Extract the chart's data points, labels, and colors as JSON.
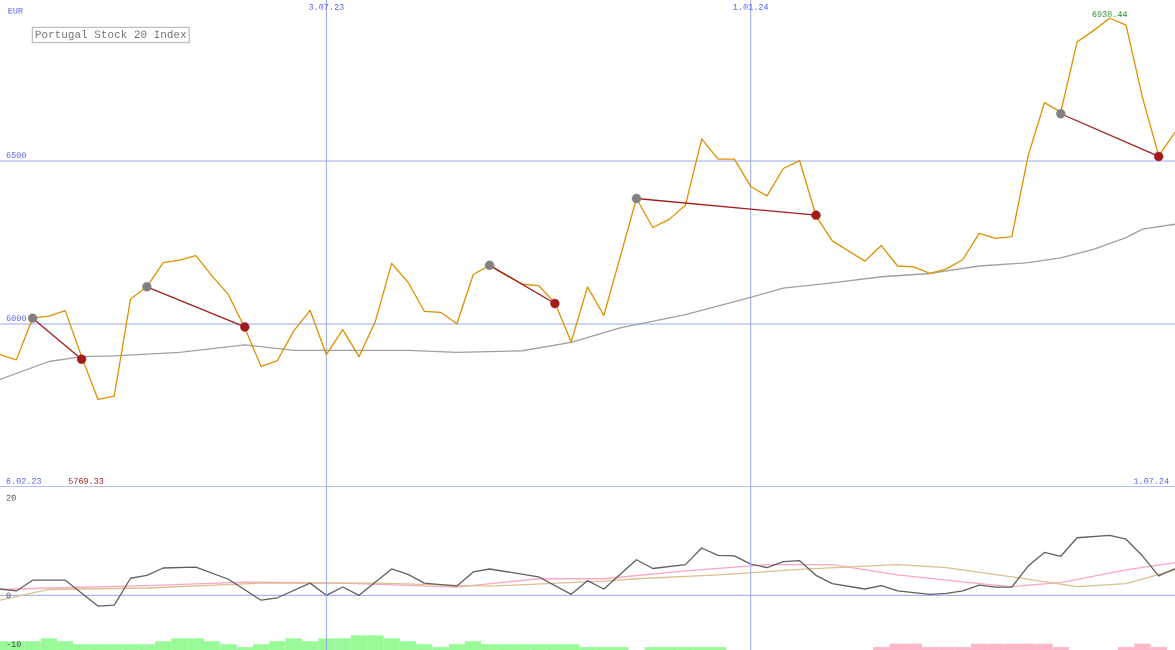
{
  "chart_data": [
    {
      "type": "line",
      "title": "Portugal Stock 20 Index",
      "ylabel": "EUR",
      "x": [
        "2023-02-13",
        "2023-02-20",
        "2023-02-27",
        "2023-03-06",
        "2023-03-13",
        "2023-03-20",
        "2023-03-27",
        "2023-04-03",
        "2023-04-10",
        "2023-04-17",
        "2023-04-24",
        "2023-05-01",
        "2023-05-08",
        "2023-05-15",
        "2023-05-22",
        "2023-05-29",
        "2023-06-05",
        "2023-06-12",
        "2023-06-19",
        "2023-06-26",
        "2023-07-03",
        "2023-07-10",
        "2023-07-17",
        "2023-07-24",
        "2023-07-31",
        "2023-08-07",
        "2023-08-14",
        "2023-08-21",
        "2023-08-28",
        "2023-09-04",
        "2023-09-11",
        "2023-09-18",
        "2023-09-25",
        "2023-10-02",
        "2023-10-09",
        "2023-10-16",
        "2023-10-23",
        "2023-10-30",
        "2023-11-06",
        "2023-11-13",
        "2023-11-20",
        "2023-11-27",
        "2023-12-04",
        "2023-12-11",
        "2023-12-18",
        "2023-12-25",
        "2024-01-01",
        "2024-01-08",
        "2024-01-15",
        "2024-01-22",
        "2024-01-29",
        "2024-02-05",
        "2024-02-12",
        "2024-02-19",
        "2024-02-26",
        "2024-03-04",
        "2024-03-11",
        "2024-03-18",
        "2024-03-25",
        "2024-04-01",
        "2024-04-08",
        "2024-04-15",
        "2024-04-22",
        "2024-04-29",
        "2024-05-06",
        "2024-05-13",
        "2024-05-20",
        "2024-05-27",
        "2024-06-03",
        "2024-06-10",
        "2024-06-17",
        "2024-06-24",
        "2024-07-01"
      ],
      "series": [
        {
          "color": "#a0a0a0",
          "x": [
            "2023-02-13",
            "2023-03-06",
            "2023-03-20",
            "2023-04-03",
            "2023-05-01",
            "2023-05-29",
            "2023-06-19",
            "2023-07-03",
            "2023-08-07",
            "2023-08-28",
            "2023-09-25",
            "2023-10-16",
            "2023-11-06",
            "2023-12-04",
            "2024-01-01",
            "2024-01-15",
            "2024-02-05",
            "2024-02-26",
            "2024-03-18",
            "2024-04-08",
            "2024-04-29",
            "2024-05-13",
            "2024-05-27",
            "2024-06-10",
            "2024-06-17",
            "2024-07-01"
          ],
          "values": [
            5830,
            5885,
            5900,
            5902,
            5913,
            5936,
            5919,
            5919,
            5919,
            5913,
            5918,
            5944,
            5988,
            6029,
            6082,
            6110,
            6126,
            6145,
            6155,
            6178,
            6188,
            6203,
            6229,
            6265,
            6291,
            6306
          ]
        },
        {
          "color": "#dd9000",
          "values": [
            5906,
            5890,
            6018,
            6024,
            6041,
            5900,
            5769,
            5779,
            6077,
            6114,
            6188,
            6196,
            6210,
            6147,
            6090,
            5988,
            5870,
            5888,
            5979,
            6042,
            5906,
            5983,
            5900,
            6008,
            6186,
            6128,
            6039,
            6036,
            6001,
            6152,
            6180,
            6150,
            6122,
            6118,
            6065,
            5945,
            6114,
            6026,
            6205,
            6385,
            6296,
            6321,
            6364,
            6568,
            6506,
            6506,
            6422,
            6393,
            6477,
            6501,
            6332,
            6255,
            6224,
            6193,
            6241,
            6178,
            6175,
            6155,
            6169,
            6198,
            6278,
            6263,
            6268,
            6516,
            6679,
            6650,
            6865,
            6900,
            6938,
            6917,
            6696,
            6516,
            6588
          ]
        },
        {
          "color": "#a01c1c",
          "marker": "circle",
          "colors": [
            "#808080",
            "#a01c1c"
          ],
          "x": [
            "2023-02-27",
            "2023-03-20"
          ],
          "values": [
            6018,
            5892
          ]
        },
        {
          "color": "#a01c1c",
          "marker": "circle",
          "colors": [
            "#808080",
            "#a01c1c"
          ],
          "x": [
            "2023-04-17",
            "2023-05-29"
          ],
          "values": [
            6114,
            5991
          ]
        },
        {
          "color": "#a01c1c",
          "marker": "circle",
          "colors": [
            "#808080",
            "#a01c1c"
          ],
          "x": [
            "2023-09-11",
            "2023-10-09"
          ],
          "values": [
            6180,
            6063
          ]
        },
        {
          "color": "#a01c1c",
          "marker": "circle",
          "colors": [
            "#808080",
            "#a01c1c"
          ],
          "x": [
            "2023-11-13",
            "2024-01-29"
          ],
          "values": [
            6385,
            6334
          ]
        },
        {
          "color": "#a01c1c",
          "marker": "circle",
          "colors": [
            "#808080",
            "#a01c1c"
          ],
          "x": [
            "2024-05-13",
            "2024-06-24"
          ],
          "values": [
            6645,
            6514
          ]
        }
      ],
      "xlim": [
        "2023-02-13",
        "2024-07-01"
      ],
      "ylim": [
        5500,
        6994
      ],
      "xticks": [
        {
          "value": "2023-07-03",
          "label": "3.07.23"
        },
        {
          "value": "2024-01-01",
          "label": "1.01.24"
        }
      ],
      "yticks": [
        6000,
        6500
      ],
      "grid": true,
      "annotations": [
        "6.02.23",
        "1.07.24",
        "5769.33",
        {
          "text": "6938.44",
          "x": "2024-06-03",
          "y": 6938
        }
      ]
    },
    {
      "type": "line",
      "series": [
        {
          "type": "bar",
          "color": "#98fb98",
          "x": [
            "2023-02-13",
            "2023-02-20",
            "2023-02-27",
            "2023-03-06",
            "2023-03-13",
            "2023-03-20",
            "2023-03-27",
            "2023-04-03",
            "2023-04-10",
            "2023-04-17",
            "2023-04-24",
            "2023-05-01",
            "2023-05-08",
            "2023-05-15",
            "2023-05-22",
            "2023-05-29",
            "2023-06-05",
            "2023-06-12",
            "2023-06-19",
            "2023-06-26",
            "2023-07-03",
            "2023-07-10",
            "2023-07-17",
            "2023-07-24",
            "2023-07-31",
            "2023-08-07",
            "2023-08-14",
            "2023-08-21",
            "2023-08-28",
            "2023-09-04",
            "2023-09-11",
            "2023-09-18",
            "2023-09-25",
            "2023-10-02",
            "2023-10-09",
            "2023-10-16",
            "2023-10-23",
            "2023-10-30",
            "2023-11-06",
            "2023-11-13",
            "2023-11-20",
            "2023-11-27",
            "2023-12-04",
            "2023-12-11",
            "2023-12-18"
          ],
          "values": [
            1.8,
            1.8,
            1.8,
            2.4,
            1.8,
            1.2,
            1.2,
            1.2,
            1.2,
            1.2,
            1.8,
            2.4,
            2.4,
            1.8,
            1.2,
            0.6,
            1.2,
            1.8,
            2.4,
            1.8,
            2.4,
            2.4,
            3.0,
            3.0,
            2.4,
            1.8,
            1.2,
            0.6,
            1.2,
            1.8,
            1.2,
            1.2,
            1.2,
            1.2,
            1.2,
            1.2,
            0.6,
            0.6,
            0.6,
            null,
            0.6,
            0.6,
            0.6,
            0.6,
            0.6
          ],
          "base": [
            -11.2,
            -11.2,
            -11.2,
            -11.2,
            -11.2,
            -11.2,
            -11.2,
            -11.2,
            -11.2,
            -11.2,
            -11.2,
            -11.2,
            -11.2,
            -11.2,
            -11.2,
            -11.2,
            -11.2,
            -11.2,
            -11.2,
            -11.2,
            -11.2,
            -11.2,
            -11.2,
            -11.2,
            -11.2,
            -11.2,
            -11.2,
            -11.2,
            -11.2,
            -11.2,
            -11.2,
            -11.2,
            -11.2,
            -11.2,
            -11.2,
            -11.2,
            -11.2,
            -11.2,
            -11.2,
            null,
            -11.2,
            -11.2,
            -11.2,
            -11.2,
            -11.2
          ]
        },
        {
          "type": "bar",
          "color": "#ffb6c8",
          "x": [
            "2024-02-26",
            "2024-03-04",
            "2024-03-11",
            "2024-03-18",
            "2024-03-25",
            "2024-04-01",
            "2024-04-08",
            "2024-04-15",
            "2024-04-22",
            "2024-04-29",
            "2024-05-06",
            "2024-05-13",
            "2024-05-20",
            "2024-05-27",
            "2024-06-03",
            "2024-06-10",
            "2024-06-17",
            "2024-06-24"
          ],
          "values": [
            0.6,
            1.3,
            1.3,
            0.6,
            0.6,
            0.6,
            1.3,
            1.3,
            1.3,
            1.3,
            1.3,
            0.6,
            null,
            null,
            null,
            0.6,
            1.3,
            0.6
          ],
          "base": [
            -11.2,
            -11.2,
            -11.2,
            -11.2,
            -11.2,
            -11.2,
            -11.2,
            -11.2,
            -11.2,
            -11.2,
            -11.2,
            -11.2,
            null,
            null,
            null,
            -11.2,
            -11.2,
            -11.2
          ]
        },
        {
          "color": "#f7a8c4",
          "x": [
            "2023-02-13",
            "2023-03-06",
            "2023-04-17",
            "2023-05-29",
            "2023-07-10",
            "2023-08-28",
            "2023-10-02",
            "2023-10-30",
            "2023-12-04",
            "2024-01-08",
            "2024-02-05",
            "2024-03-04",
            "2024-04-08",
            "2024-04-22",
            "2024-05-13",
            "2024-06-10",
            "2024-07-01"
          ],
          "values": [
            1.2,
            1.5,
            2.0,
            2.7,
            2.5,
            1.7,
            3.4,
            3.4,
            5.0,
            6.3,
            6.3,
            4.2,
            2.4,
            1.8,
            2.6,
            5.2,
            6.7
          ]
        },
        {
          "color": "#dcc090",
          "x": [
            "2023-02-13",
            "2023-03-06",
            "2023-04-17",
            "2023-06-05",
            "2023-07-24",
            "2023-09-11",
            "2023-10-30",
            "2023-11-13",
            "2023-12-18",
            "2024-01-22",
            "2024-03-04",
            "2024-03-25",
            "2024-04-22",
            "2024-05-20",
            "2024-06-10",
            "2024-07-01"
          ],
          "values": [
            -1.0,
            1.2,
            1.5,
            2.5,
            2.5,
            1.9,
            2.9,
            3.4,
            4.2,
            5.3,
            6.3,
            5.7,
            3.8,
            1.8,
            2.4,
            5.2
          ]
        },
        {
          "color": "#606060",
          "x": [
            "2023-02-13",
            "2023-02-20",
            "2023-02-27",
            "2023-03-13",
            "2023-03-27",
            "2023-04-03",
            "2023-04-10",
            "2023-04-17",
            "2023-04-24",
            "2023-05-08",
            "2023-05-22",
            "2023-06-05",
            "2023-06-12",
            "2023-06-26",
            "2023-07-03",
            "2023-07-10",
            "2023-07-17",
            "2023-07-31",
            "2023-08-07",
            "2023-08-14",
            "2023-08-28",
            "2023-09-04",
            "2023-09-11",
            "2023-10-02",
            "2023-10-16",
            "2023-10-23",
            "2023-10-30",
            "2023-11-13",
            "2023-11-20",
            "2023-12-04",
            "2023-12-11",
            "2023-12-18",
            "2023-12-25",
            "2024-01-01",
            "2024-01-08",
            "2024-01-15",
            "2024-01-22",
            "2024-01-29",
            "2024-02-05",
            "2024-02-19",
            "2024-02-26",
            "2024-03-04",
            "2024-03-18",
            "2024-03-25",
            "2024-04-01",
            "2024-04-08",
            "2024-04-15",
            "2024-04-22",
            "2024-04-29",
            "2024-05-06",
            "2024-05-13",
            "2024-05-20",
            "2024-06-03",
            "2024-06-10",
            "2024-06-17",
            "2024-06-24",
            "2024-07-01"
          ],
          "values": [
            1.3,
            0.9,
            3.1,
            3.1,
            -2.2,
            -2.0,
            3.5,
            4.1,
            5.6,
            5.8,
            3.3,
            -1.0,
            -0.5,
            2.5,
            0,
            1.7,
            0,
            5.4,
            4.3,
            2.5,
            1.9,
            4.8,
            5.4,
            3.8,
            0.2,
            3.0,
            1.3,
            7.3,
            5.5,
            6.3,
            9.7,
            8.2,
            8.1,
            6.4,
            5.7,
            6.9,
            7.1,
            4.1,
            2.4,
            1.3,
            2.0,
            0.9,
            0.2,
            0.4,
            0.9,
            2.1,
            1.7,
            1.7,
            6.0,
            8.8,
            8.0,
            11.8,
            12.3,
            11.5,
            8.1,
            4.0,
            5.5
          ]
        }
      ],
      "xlim": [
        "2023-02-13",
        "2024-07-01"
      ],
      "ylim": [
        -11.2,
        22.2
      ],
      "xticks": [
        {
          "value": "2023-07-03",
          "label": null
        },
        {
          "value": "2024-01-01",
          "label": null
        }
      ],
      "yticks": [
        20,
        0,
        -10
      ],
      "grid": "x",
      "tick_labels": "y",
      "ref_lines": [
        {
          "axis": "y",
          "value": 0,
          "color": "#9aa8ee"
        }
      ]
    }
  ]
}
